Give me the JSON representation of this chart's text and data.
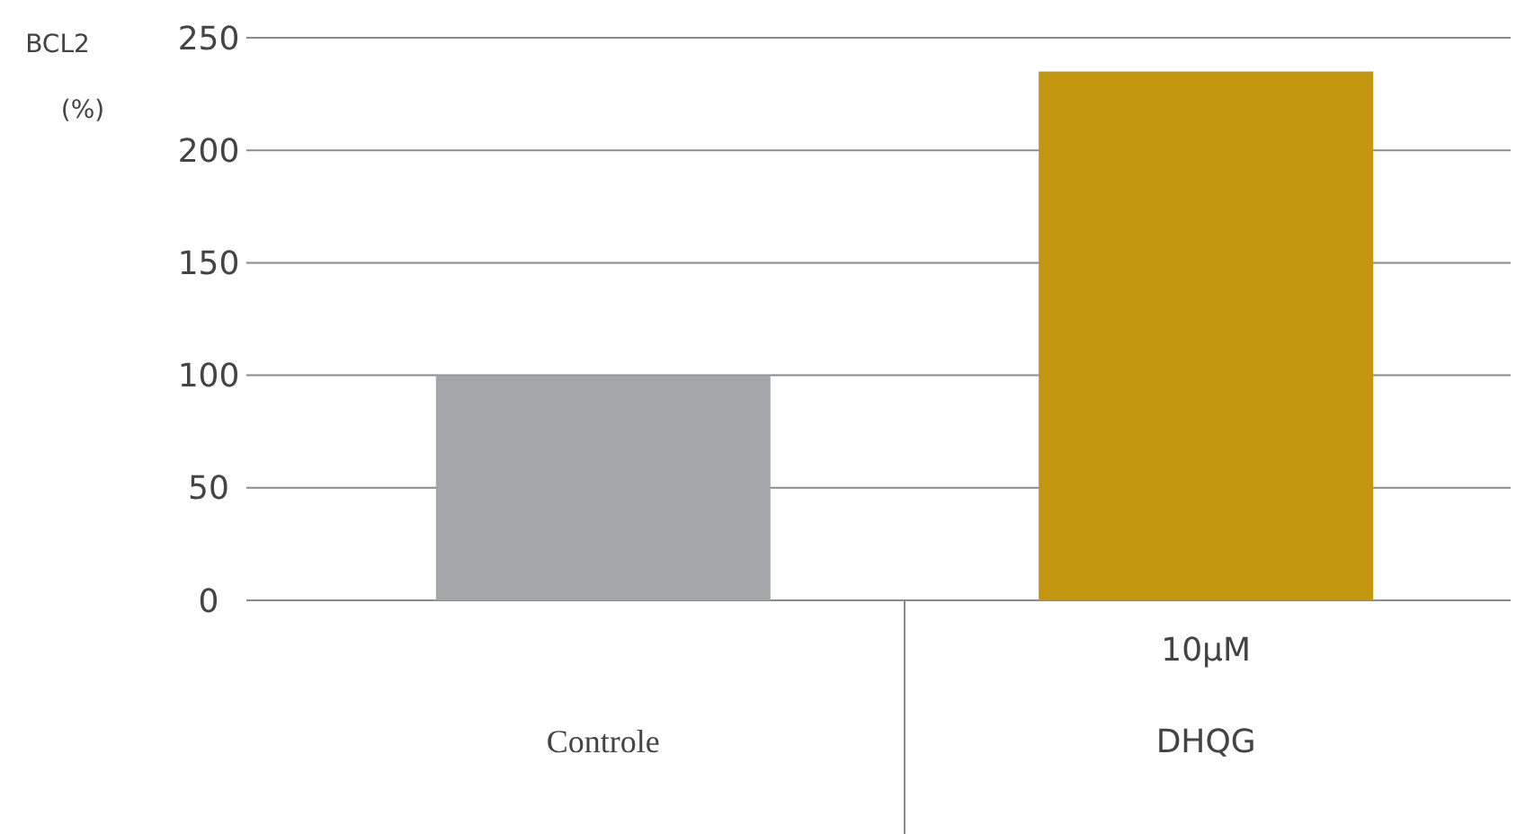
{
  "chart_data": {
    "type": "bar",
    "ylabel": "BCL2 (%)",
    "categories": [
      "Controle",
      "DHQG"
    ],
    "values": [
      100,
      235
    ],
    "colors": [
      "#a3a6a9",
      "#c3960f"
    ],
    "ylim": [
      0,
      250
    ],
    "yticks": [
      0,
      50,
      100,
      150,
      200,
      250
    ],
    "grid": "y",
    "annotations": [
      "10µM"
    ]
  }
}
